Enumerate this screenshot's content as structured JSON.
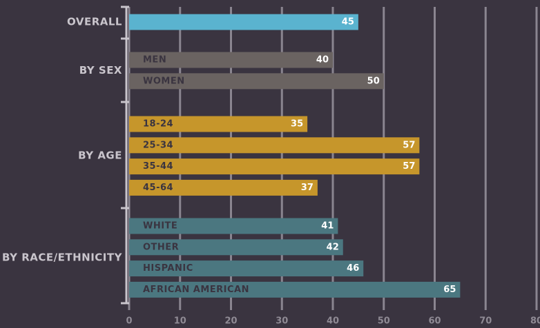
{
  "chart_data": {
    "type": "bar",
    "orientation": "horizontal",
    "groups": [
      {
        "name": "OVERALL",
        "color": "#5ab3cf",
        "categories": [
          null
        ],
        "values": [
          45
        ]
      },
      {
        "name": "BY SEX",
        "color": "#6a6361",
        "categories": [
          "MEN",
          "WOMEN"
        ],
        "values": [
          40,
          50
        ]
      },
      {
        "name": "BY AGE",
        "color": "#c6962b",
        "categories": [
          "18-24",
          "25-34",
          "35-44",
          "45-64"
        ],
        "values": [
          35,
          57,
          57,
          37
        ]
      },
      {
        "name": "BY RACE/ETHNICITY",
        "color": "#4b7780",
        "categories": [
          "WHITE",
          "OTHER",
          "HISPANIC",
          "AFRICAN AMERICAN"
        ],
        "values": [
          41,
          42,
          46,
          65
        ]
      }
    ],
    "xlim": [
      0,
      80
    ],
    "xticks": [
      0,
      10,
      20,
      30,
      40,
      50,
      60,
      70,
      80
    ],
    "grid": true
  }
}
